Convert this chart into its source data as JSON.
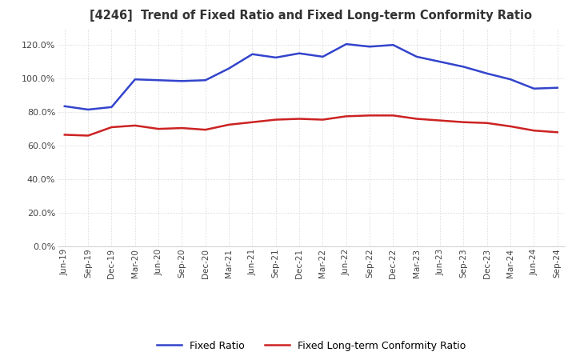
{
  "title": "[4246]  Trend of Fixed Ratio and Fixed Long-term Conformity Ratio",
  "x_labels": [
    "Jun-19",
    "Sep-19",
    "Dec-19",
    "Mar-20",
    "Jun-20",
    "Sep-20",
    "Dec-20",
    "Mar-21",
    "Jun-21",
    "Sep-21",
    "Dec-21",
    "Mar-22",
    "Jun-22",
    "Sep-22",
    "Dec-22",
    "Mar-23",
    "Jun-23",
    "Sep-23",
    "Dec-23",
    "Mar-24",
    "Jun-24",
    "Sep-24"
  ],
  "fixed_ratio": [
    83.5,
    81.5,
    83.0,
    99.5,
    99.0,
    98.5,
    99.0,
    106.0,
    114.5,
    112.5,
    115.0,
    113.0,
    120.5,
    119.0,
    120.0,
    113.0,
    110.0,
    107.0,
    103.0,
    99.5,
    94.0,
    94.5
  ],
  "fixed_lt_ratio": [
    66.5,
    66.0,
    71.0,
    72.0,
    70.0,
    70.5,
    69.5,
    72.5,
    74.0,
    75.5,
    76.0,
    75.5,
    77.5,
    78.0,
    78.0,
    76.0,
    75.0,
    74.0,
    73.5,
    71.5,
    69.0,
    68.0
  ],
  "fixed_ratio_color": "#3344cc",
  "fixed_lt_ratio_color": "#cc2222",
  "ylim": [
    0,
    130
  ],
  "yticks": [
    0,
    20,
    40,
    60,
    80,
    100,
    120
  ],
  "background_color": "#ffffff",
  "grid_color": "#bbbbbb",
  "legend_fixed": "Fixed Ratio",
  "legend_lt": "Fixed Long-term Conformity Ratio"
}
